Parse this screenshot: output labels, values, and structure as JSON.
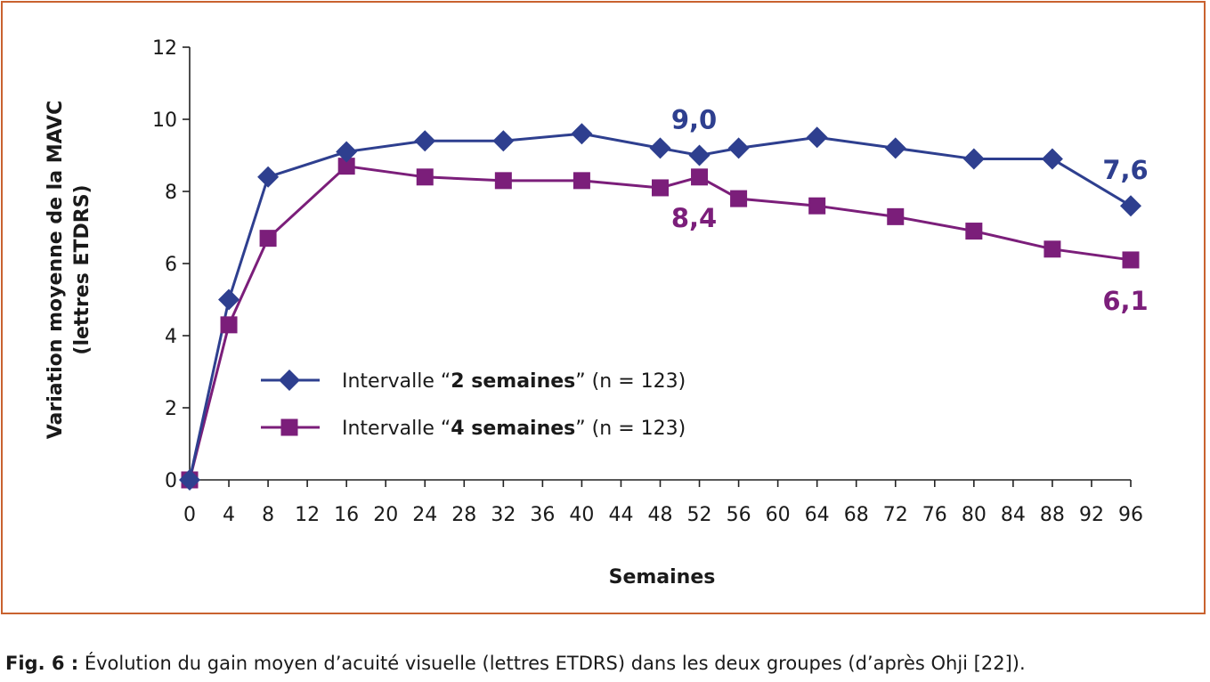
{
  "chart_data": {
    "type": "line",
    "xlabel": "Semaines",
    "ylabel_line1": "Variation moyenne de la MAVC",
    "ylabel_line2": "(lettres ETDRS)",
    "xlim": [
      0,
      96
    ],
    "ylim": [
      0,
      12
    ],
    "x_ticks": [
      0,
      4,
      8,
      12,
      16,
      20,
      24,
      28,
      32,
      36,
      40,
      44,
      48,
      52,
      56,
      60,
      64,
      68,
      72,
      76,
      80,
      84,
      88,
      92,
      96
    ],
    "y_ticks": [
      0,
      2,
      4,
      6,
      8,
      10,
      12
    ],
    "grid": false,
    "legend_position": "lower-left",
    "series": [
      {
        "legend_prefix": "Intervalle “",
        "legend_bold": "2 semaines",
        "legend_suffix": "” (n = 123)",
        "color": "#2e3f8f",
        "marker": "diamond",
        "x": [
          0,
          4,
          8,
          16,
          24,
          32,
          40,
          48,
          52,
          56,
          64,
          72,
          80,
          88,
          96
        ],
        "y": [
          0,
          5.0,
          8.4,
          9.1,
          9.4,
          9.4,
          9.6,
          9.2,
          9.0,
          9.2,
          9.5,
          9.2,
          8.9,
          8.9,
          7.6
        ]
      },
      {
        "legend_prefix": "Intervalle “",
        "legend_bold": "4 semaines",
        "legend_suffix": "” (n = 123)",
        "color": "#7b1e7a",
        "marker": "square",
        "x": [
          0,
          4,
          8,
          16,
          24,
          32,
          40,
          48,
          52,
          56,
          64,
          72,
          80,
          88,
          96
        ],
        "y": [
          0,
          4.3,
          6.7,
          8.7,
          8.4,
          8.3,
          8.3,
          8.1,
          8.4,
          7.8,
          7.6,
          7.3,
          6.9,
          6.4,
          6.1
        ]
      }
    ],
    "annotations": [
      {
        "text": "9,0",
        "x": 52,
        "y": 9.0,
        "series": 0,
        "placement": "above"
      },
      {
        "text": "8,4",
        "x": 52,
        "y": 8.4,
        "series": 1,
        "placement": "below"
      },
      {
        "text": "7,6",
        "x": 96,
        "y": 7.6,
        "series": 0,
        "placement": "above"
      },
      {
        "text": "6,1",
        "x": 96,
        "y": 6.1,
        "series": 1,
        "placement": "below"
      }
    ]
  },
  "caption": {
    "label": "Fig. 6 :",
    "text": " Évolution du gain moyen d’acuité visuelle (lettres ETDRS) dans les deux groupes (d’après Ohji [22])."
  },
  "colors": {
    "frame": "#c9622f",
    "axis": "#222222"
  }
}
